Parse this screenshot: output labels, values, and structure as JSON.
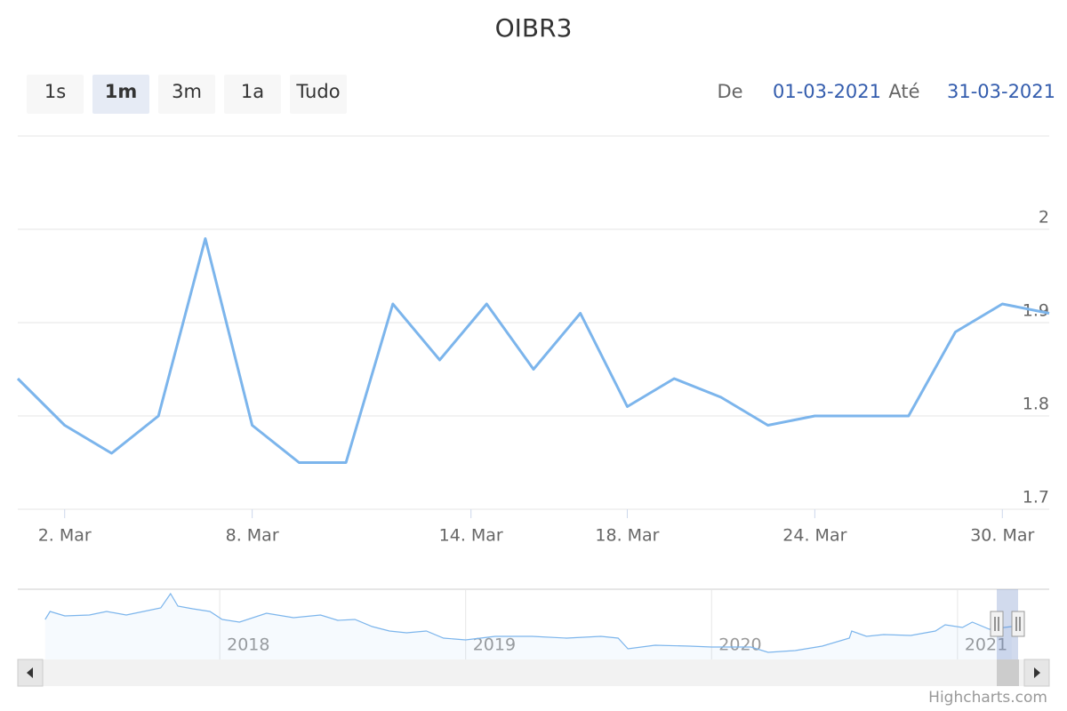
{
  "title": "OIBR3",
  "range_selector": {
    "buttons": [
      "1s",
      "1m",
      "3m",
      "1a",
      "Tudo"
    ],
    "selected": 1,
    "from_label": "De",
    "from": "01-03-2021",
    "to_label": "Até",
    "to": "31-03-2021"
  },
  "credits": "Highcharts.com",
  "chart_data": [
    {
      "type": "line",
      "color": "#7cb5ec",
      "x": [
        "2021-03-01",
        "2021-03-02",
        "2021-03-03",
        "2021-03-04",
        "2021-03-05",
        "2021-03-08",
        "2021-03-09",
        "2021-03-10",
        "2021-03-11",
        "2021-03-12",
        "2021-03-15",
        "2021-03-16",
        "2021-03-17",
        "2021-03-18",
        "2021-03-19",
        "2021-03-22",
        "2021-03-23",
        "2021-03-24",
        "2021-03-25",
        "2021-03-26",
        "2021-03-29",
        "2021-03-30",
        "2021-03-31"
      ],
      "values": [
        1.84,
        1.79,
        1.76,
        1.8,
        1.99,
        1.79,
        1.75,
        1.75,
        1.92,
        1.86,
        1.92,
        1.85,
        1.91,
        1.81,
        1.84,
        1.82,
        1.79,
        1.8,
        1.8,
        1.8,
        1.89,
        1.92,
        1.91
      ],
      "ylim": [
        1.7,
        2.1
      ],
      "yticks": [
        1.7,
        1.8,
        1.9,
        2
      ],
      "xticks": [
        {
          "value": "2021-03-02",
          "label": "2. Mar"
        },
        {
          "value": "2021-03-08",
          "label": "8. Mar"
        },
        {
          "value": "2021-03-14",
          "label": "14. Mar"
        },
        {
          "value": "2021-03-18",
          "label": "18. Mar"
        },
        {
          "value": "2021-03-24",
          "label": "24. Mar"
        },
        {
          "value": "2021-03-30",
          "label": "30. Mar"
        }
      ],
      "grid": true
    },
    {
      "type": "area",
      "color": "#7cb5ec",
      "x": [
        2017.29,
        2017.31,
        2017.37,
        2017.47,
        2017.54,
        2017.62,
        2017.69,
        2017.76,
        2017.8,
        2017.83,
        2017.89,
        2017.96,
        2018.01,
        2018.08,
        2018.19,
        2018.3,
        2018.41,
        2018.48,
        2018.55,
        2018.62,
        2018.69,
        2018.76,
        2018.84,
        2018.91,
        2019.0,
        2019.12,
        2019.27,
        2019.41,
        2019.55,
        2019.62,
        2019.66,
        2019.77,
        2019.91,
        2020.0,
        2020.16,
        2020.23,
        2020.34,
        2020.45,
        2020.56,
        2020.57,
        2020.63,
        2020.7,
        2020.81,
        2020.91,
        2020.95,
        2021.02,
        2021.06,
        2021.13,
        2021.22
      ],
      "values": [
        2.08,
        2.35,
        2.2,
        2.23,
        2.35,
        2.23,
        2.35,
        2.47,
        2.95,
        2.53,
        2.44,
        2.35,
        2.08,
        1.99,
        2.29,
        2.14,
        2.23,
        2.05,
        2.08,
        1.84,
        1.69,
        1.63,
        1.69,
        1.45,
        1.39,
        1.51,
        1.51,
        1.45,
        1.51,
        1.45,
        1.09,
        1.21,
        1.18,
        1.15,
        1.15,
        0.97,
        1.03,
        1.18,
        1.45,
        1.69,
        1.51,
        1.57,
        1.54,
        1.69,
        1.9,
        1.81,
        1.99,
        1.75,
        1.84
      ],
      "xlim": [
        2017.28,
        2021.25
      ],
      "xticks": [
        2018,
        2019,
        2020,
        2021
      ]
    }
  ]
}
